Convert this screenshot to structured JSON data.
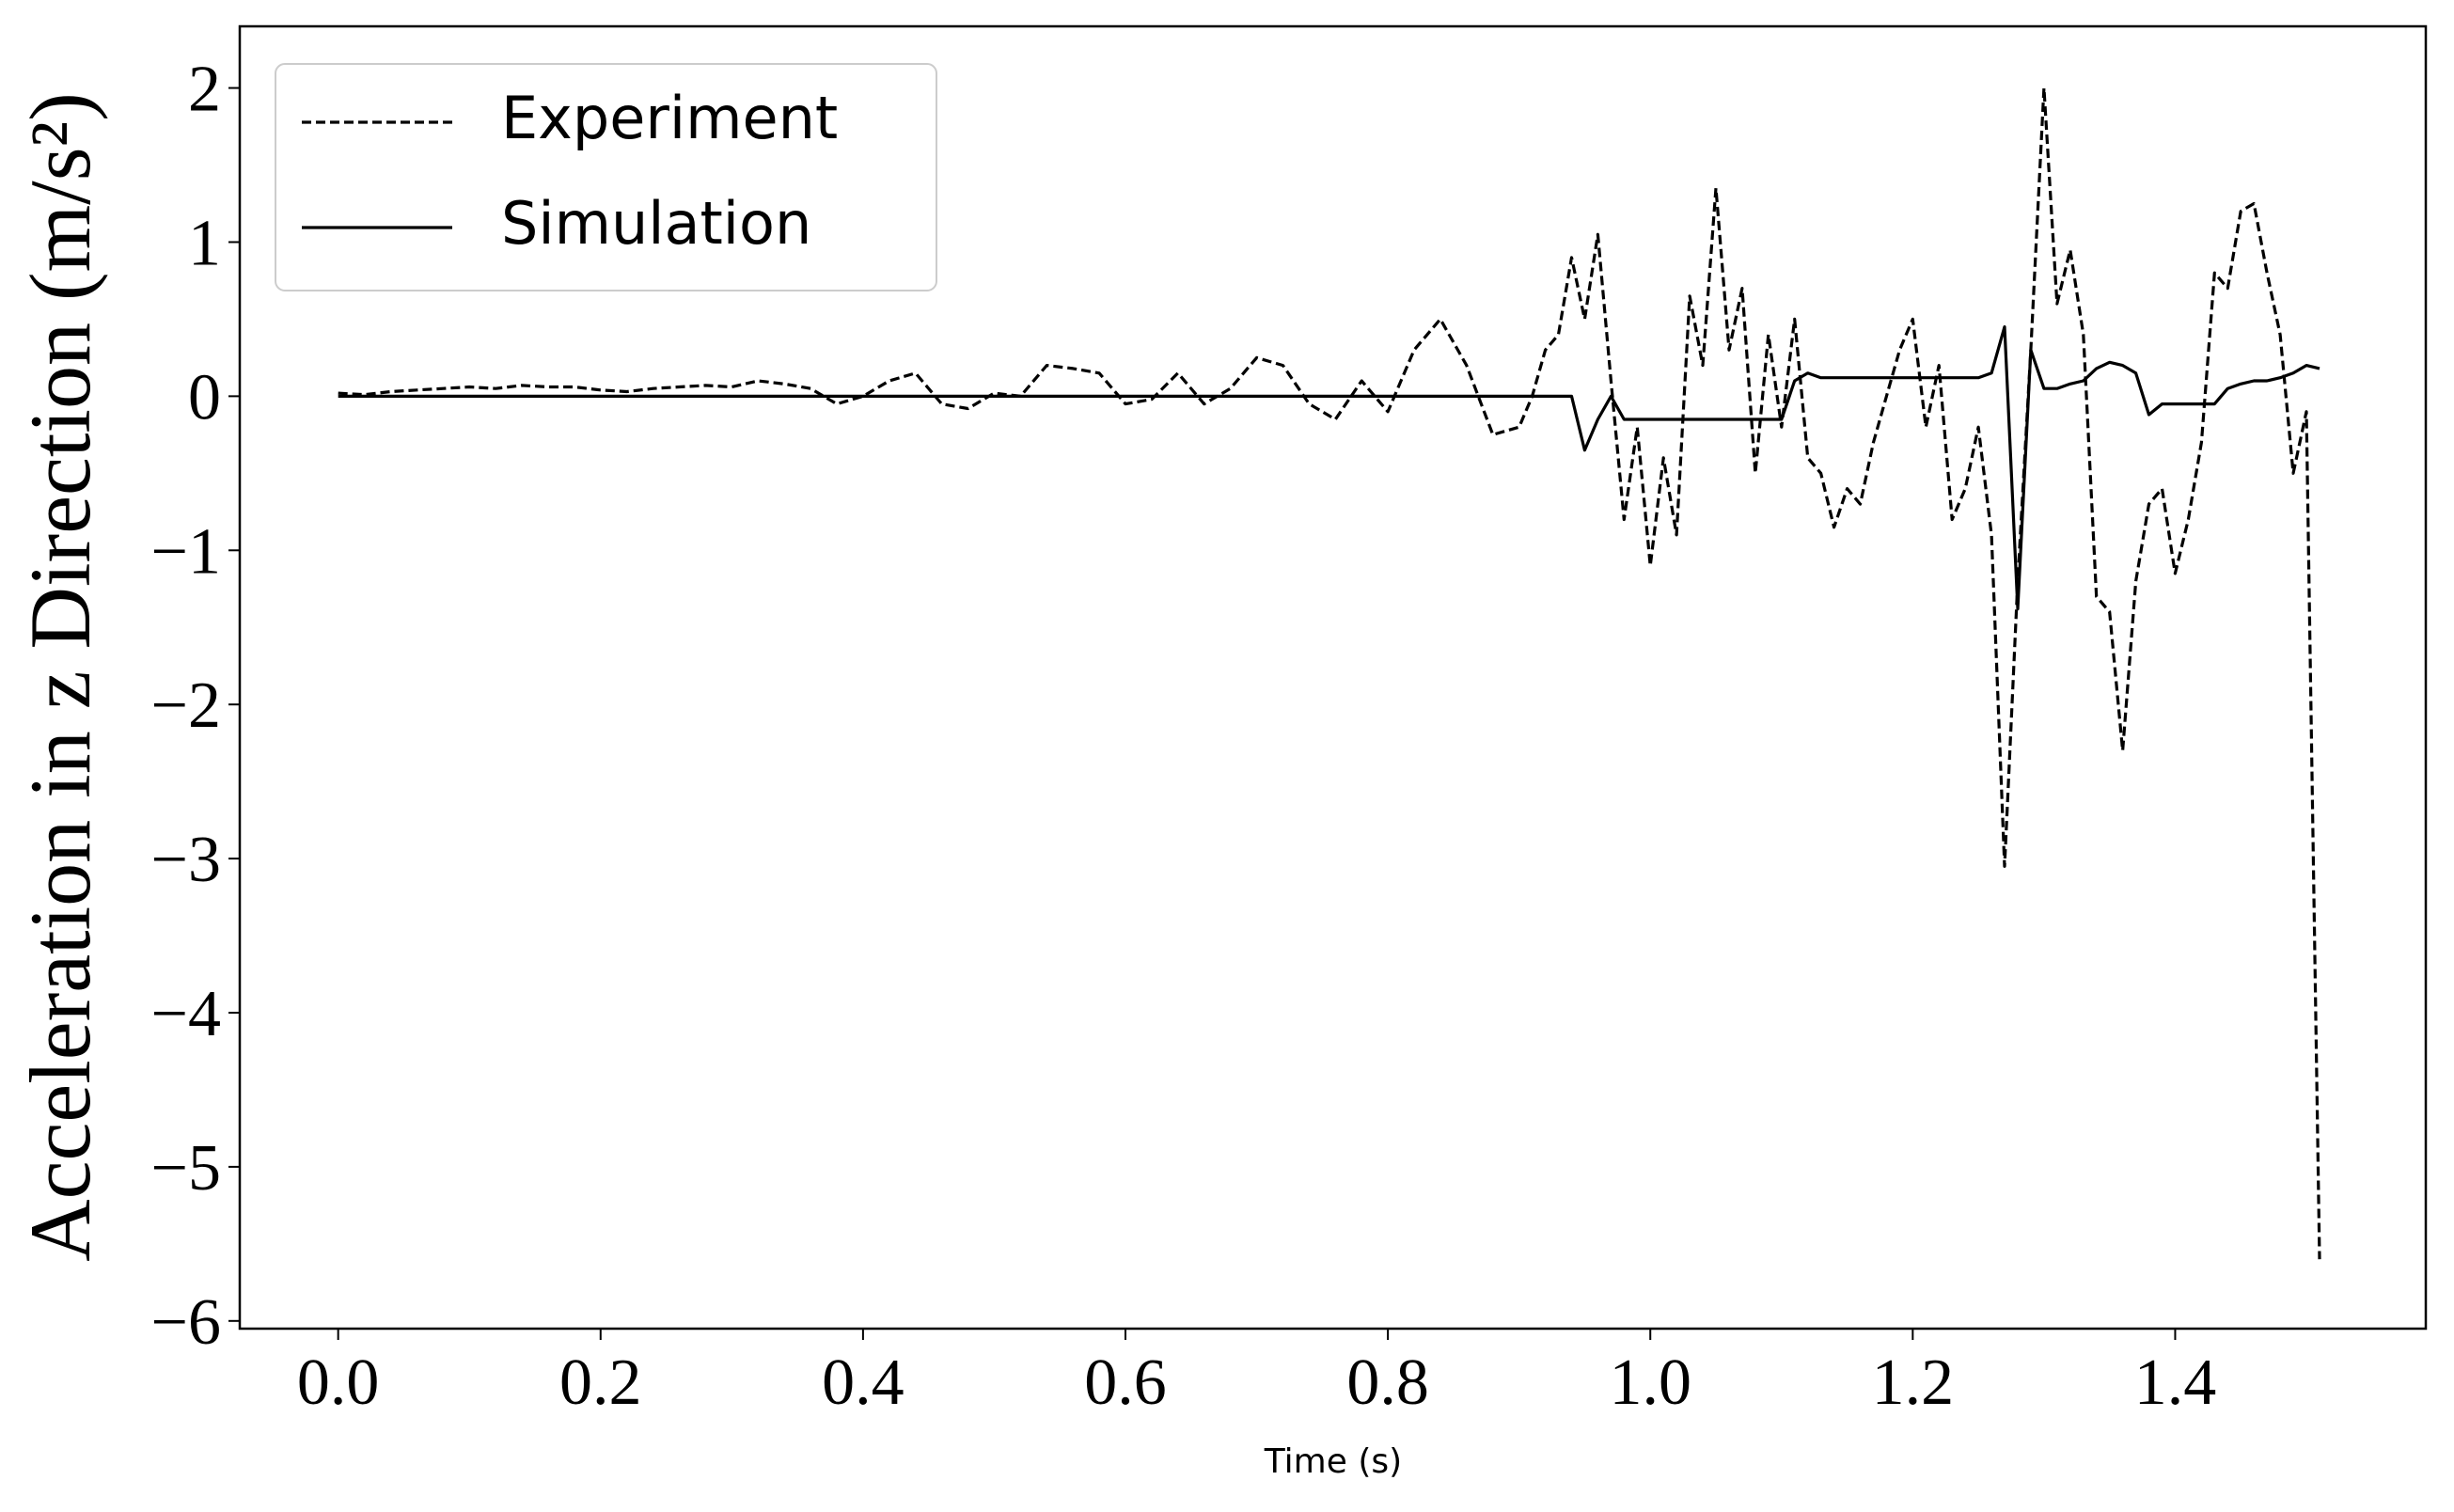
{
  "chart_data": {
    "type": "line",
    "xlabel": "Time (s)",
    "ylabel": "Acceleration in z Direction (m/s²)",
    "x": [
      0,
      0.02,
      0.04,
      0.06,
      0.08,
      0.1,
      0.12,
      0.14,
      0.16,
      0.18,
      0.2,
      0.22,
      0.24,
      0.26,
      0.28,
      0.3,
      0.32,
      0.34,
      0.36,
      0.38,
      0.4,
      0.42,
      0.44,
      0.46,
      0.48,
      0.5,
      0.52,
      0.54,
      0.56,
      0.58,
      0.6,
      0.62,
      0.64,
      0.66,
      0.68,
      0.7,
      0.72,
      0.74,
      0.76,
      0.78,
      0.8,
      0.82,
      0.84,
      0.86,
      0.88,
      0.9,
      0.91,
      0.92,
      0.93,
      0.94,
      0.95,
      0.96,
      0.97,
      0.98,
      0.99,
      1.0,
      1.01,
      1.02,
      1.03,
      1.04,
      1.05,
      1.06,
      1.07,
      1.08,
      1.09,
      1.1,
      1.11,
      1.12,
      1.13,
      1.14,
      1.15,
      1.16,
      1.17,
      1.18,
      1.19,
      1.2,
      1.21,
      1.22,
      1.23,
      1.24,
      1.25,
      1.26,
      1.27,
      1.28,
      1.29,
      1.3,
      1.31,
      1.32,
      1.33,
      1.34,
      1.35,
      1.36,
      1.37,
      1.38,
      1.39,
      1.4,
      1.41,
      1.42,
      1.43,
      1.44,
      1.45,
      1.46,
      1.47,
      1.48,
      1.49,
      1.5,
      1.51
    ],
    "series": [
      {
        "name": "Experiment",
        "color": "#000000",
        "linestyle": "dashed",
        "values": [
          0.02,
          0.01,
          0.03,
          0.04,
          0.05,
          0.06,
          0.05,
          0.07,
          0.06,
          0.06,
          0.04,
          0.03,
          0.05,
          0.06,
          0.07,
          0.06,
          0.1,
          0.08,
          0.05,
          -0.05,
          0,
          0.1,
          0.15,
          -0.05,
          -0.08,
          0.02,
          0,
          0.2,
          0.18,
          0.15,
          -0.05,
          -0.02,
          0.15,
          -0.05,
          0.05,
          0.25,
          0.2,
          -0.05,
          -0.15,
          0.1,
          -0.1,
          0.3,
          0.5,
          0.2,
          -0.25,
          -0.2,
          0,
          0.3,
          0.4,
          0.9,
          0.5,
          1.05,
          0.1,
          -0.8,
          -0.2,
          -1.1,
          -0.4,
          -0.9,
          0.65,
          0.2,
          1.35,
          0.3,
          0.7,
          -0.5,
          0.4,
          -0.2,
          0.5,
          -0.4,
          -0.5,
          -0.85,
          -0.6,
          -0.7,
          -0.3,
          0,
          0.3,
          0.5,
          -0.2,
          0.2,
          -0.8,
          -0.6,
          -0.2,
          -0.9,
          -3.05,
          -1.2,
          0.3,
          2,
          0.6,
          0.95,
          0.4,
          -1.3,
          -1.4,
          -2.3,
          -1.2,
          -0.7,
          -0.6,
          -1.15,
          -0.8,
          -0.3,
          0.8,
          0.7,
          1.2,
          1.25,
          0.8,
          0.4,
          -0.5,
          -0.1,
          -5.6
        ]
      },
      {
        "name": "Simulation",
        "color": "#000000",
        "linestyle": "solid",
        "values": [
          0,
          0,
          0,
          0,
          0,
          0,
          0,
          0,
          0,
          0,
          0,
          0,
          0,
          0,
          0,
          0,
          0,
          0,
          0,
          0,
          0,
          0,
          0,
          0,
          0,
          0,
          0,
          0,
          0,
          0,
          0,
          0,
          0,
          0,
          0,
          0,
          0,
          0,
          0,
          0,
          0,
          0,
          0,
          0,
          0,
          0,
          0,
          0,
          0,
          0,
          -0.35,
          -0.15,
          0,
          -0.15,
          -0.15,
          -0.15,
          -0.15,
          -0.15,
          -0.15,
          -0.15,
          -0.15,
          -0.15,
          -0.15,
          -0.15,
          -0.15,
          -0.15,
          0.1,
          0.15,
          0.12,
          0.12,
          0.12,
          0.12,
          0.12,
          0.12,
          0.12,
          0.12,
          0.12,
          0.12,
          0.12,
          0.12,
          0.12,
          0.15,
          0.45,
          -1.38,
          0.3,
          0.05,
          0.05,
          0.08,
          0.1,
          0.18,
          0.22,
          0.2,
          0.15,
          -0.12,
          -0.05,
          -0.05,
          -0.05,
          -0.05,
          -0.05,
          0.05,
          0.08,
          0.1,
          0.1,
          0.12,
          0.15,
          0.2,
          0.18
        ]
      }
    ],
    "xlim": [
      -0.075,
      1.591
    ],
    "ylim": [
      -6.05,
      2.4
    ],
    "xticks": [
      {
        "value": 0,
        "label": "0.0"
      },
      0.2,
      0.4,
      0.6,
      0.8,
      {
        "value": 1,
        "label": "1.0"
      },
      1.2,
      1.4
    ],
    "yticks": [
      {
        "value": -6,
        "label": "−6"
      },
      {
        "value": -5,
        "label": "−5"
      },
      {
        "value": -4,
        "label": "−4"
      },
      {
        "value": -3,
        "label": "−3"
      },
      {
        "value": -2,
        "label": "−2"
      },
      {
        "value": -1,
        "label": "−1"
      },
      0,
      1,
      2
    ],
    "legend": "upper left"
  }
}
